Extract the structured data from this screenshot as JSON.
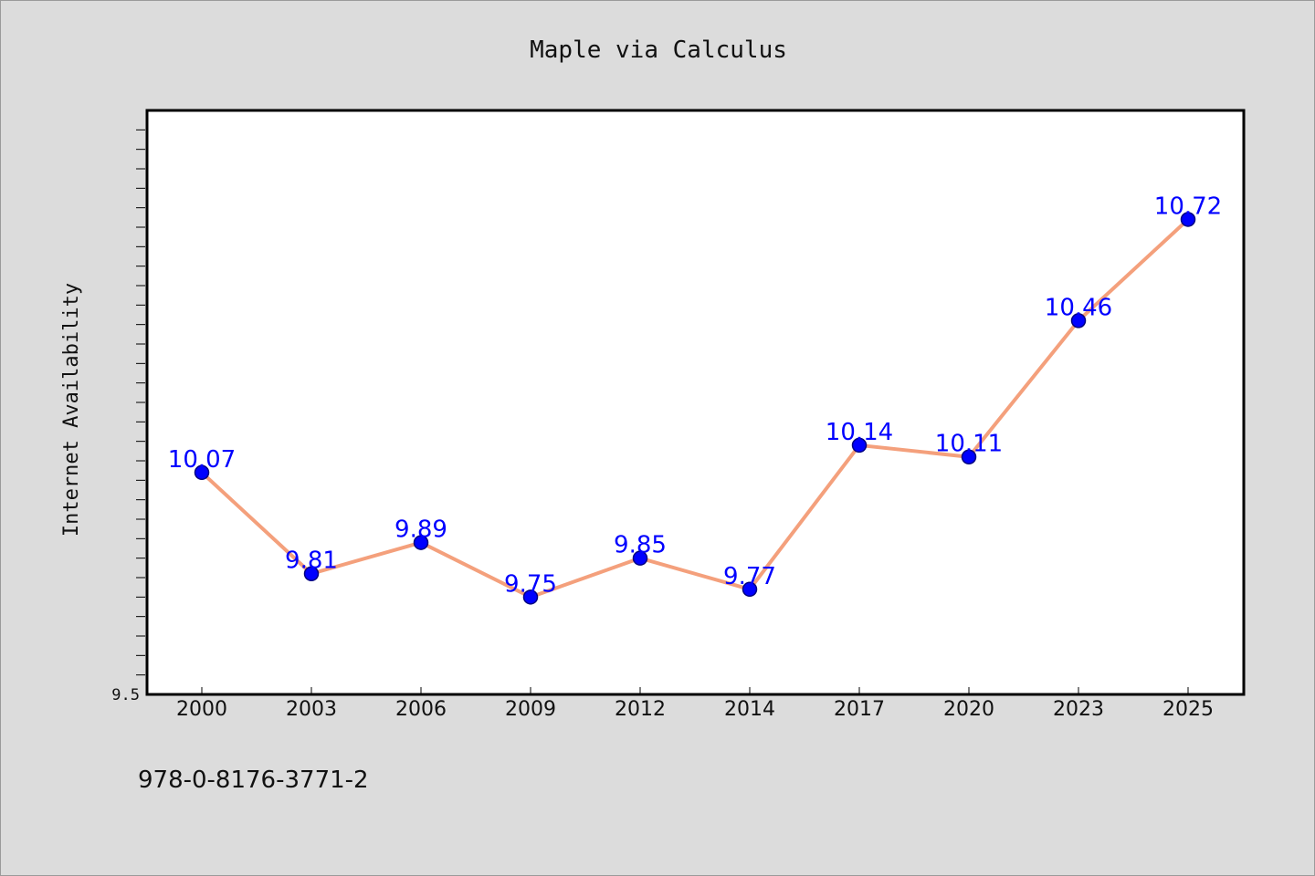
{
  "chart_data": {
    "type": "line",
    "title": "Maple via Calculus",
    "xlabel": "",
    "ylabel": "Internet Availability",
    "categories": [
      "2000",
      "2003",
      "2006",
      "2009",
      "2012",
      "2014",
      "2017",
      "2020",
      "2023",
      "2025"
    ],
    "series": [
      {
        "values": [
          10.07,
          9.81,
          9.89,
          9.75,
          9.85,
          9.77,
          10.14,
          10.11,
          10.46,
          10.72
        ],
        "labels": [
          "10.07",
          "9.81",
          "9.89",
          "9.75",
          "9.85",
          "9.77",
          "10.14",
          "10.11",
          "10.46",
          "10.72"
        ]
      }
    ],
    "y_tick_labels": [
      "9.5"
    ],
    "ylim": [
      9.5,
      11.0
    ],
    "grid": false,
    "legend": "none",
    "colors": {
      "line": "#f4a07c",
      "marker": "#0000ff",
      "marker_edge": "#000080",
      "data_label": "#0000ff",
      "plot_background": "#ffffff",
      "figure_background": "#dcdcdc"
    }
  },
  "footer": {
    "isbn": "978-0-8176-3771-2"
  }
}
